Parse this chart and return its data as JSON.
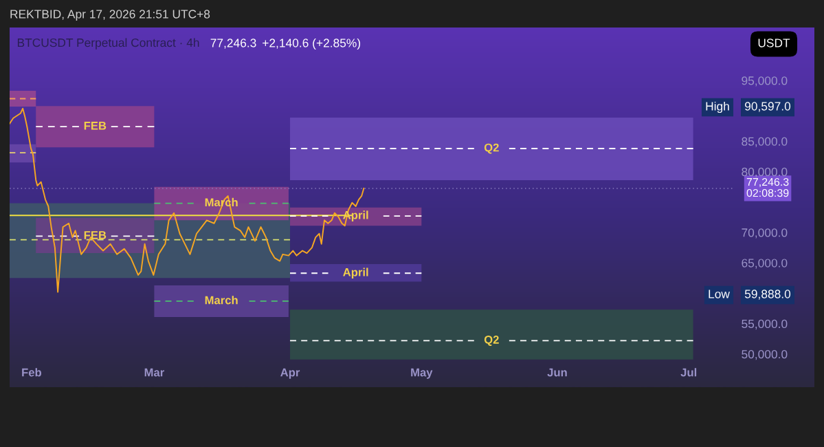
{
  "chart_data": {
    "type": "line",
    "title": "BTCUSDT Perpetual Contract · 4h",
    "annotations": [
      "REKTBID, Apr 17, 2026 21:51 UTC+8",
      "77,246.3",
      "+2,140.6 (+2.85%)",
      "USDT",
      "High",
      "90,597.0",
      "Low",
      "59,888.0"
    ],
    "series": [
      {
        "line_style": "dashed",
        "color": "#d8e070",
        "colors": [
          "#3e5868",
          "#3e5868"
        ],
        "x": [
          "2026-01-27",
          "2026-04-01"
        ],
        "values": [
          68800,
          68800
        ],
        "lower": [
          62500,
          62500
        ],
        "upper": [
          74800,
          74800
        ]
      },
      {
        "line_style": "dashed",
        "color": "#f5a05a",
        "colors": [
          "#9a4690",
          "#9a4690"
        ],
        "x": [
          "2026-01-27",
          "2026-02-02"
        ],
        "values": [
          92000,
          92000
        ],
        "lower": [
          90700,
          90700
        ],
        "upper": [
          93300,
          93300
        ]
      },
      {
        "line_style": "dashed",
        "color": "#ffffff",
        "name": "FEB",
        "colors": [
          "#8e418d",
          "#8e418d"
        ],
        "x": [
          "2026-02-02",
          "2026-03-01"
        ],
        "values": [
          87400,
          87400
        ],
        "lower": [
          84000,
          84000
        ],
        "upper": [
          90800,
          90800
        ]
      },
      {
        "line_style": "dashed",
        "color": "#e8d070",
        "colors": [
          "#6848a8",
          "#6848a8"
        ],
        "x": [
          "2026-01-27",
          "2026-02-02"
        ],
        "values": [
          83100,
          83100
        ],
        "lower": [
          81500,
          81500
        ],
        "upper": [
          84500,
          84500
        ]
      },
      {
        "line_style": "dashed",
        "color": "#ffffff",
        "name": "FEB",
        "colors": [
          "#6a3f86",
          "#6a3f86"
        ],
        "x": [
          "2026-02-02",
          "2026-03-01"
        ],
        "values": [
          69400,
          69400
        ],
        "lower": [
          66600,
          66600
        ],
        "upper": [
          72400,
          72400
        ]
      },
      {
        "line_style": "dashed",
        "color": "#4cc070",
        "name": "March",
        "colors": [
          "#8e428e",
          "#8e428e"
        ],
        "x": [
          "2026-03-01",
          "2026-03-31T16:00"
        ],
        "values": [
          74800,
          74800
        ],
        "lower": [
          72000,
          72000
        ],
        "upper": [
          77500,
          77500
        ]
      },
      {
        "line_style": "dashed",
        "color": "#4cc070",
        "name": "March",
        "colors": [
          "#5e4296",
          "#5e4296"
        ],
        "x": [
          "2026-03-01",
          "2026-03-31T16:00"
        ],
        "values": [
          58700,
          58700
        ],
        "lower": [
          56100,
          56100
        ],
        "upper": [
          61300,
          61300
        ]
      },
      {
        "line_style": "dashed",
        "color": "#ffffff",
        "name": "Q2",
        "colors": [
          "#6a4bb8",
          "#6a4bb8"
        ],
        "x": [
          "2026-04-01",
          "2026-07-02"
        ],
        "values": [
          83800,
          83800
        ],
        "lower": [
          78600,
          78600
        ],
        "upper": [
          88900,
          88900
        ]
      },
      {
        "line_style": "dashed",
        "color": "#ffffff",
        "name": "April",
        "colors": [
          "#853f88",
          "#853f88"
        ],
        "x": [
          "2026-04-01",
          "2026-05-01"
        ],
        "values": [
          72700,
          72700
        ],
        "lower": [
          71100,
          71100
        ],
        "upper": [
          74100,
          74100
        ]
      },
      {
        "line_style": "dashed",
        "color": "#ffffff",
        "name": "April",
        "colors": [
          "#4f3a98",
          "#4f3a98"
        ],
        "x": [
          "2026-04-01",
          "2026-05-01"
        ],
        "values": [
          63300,
          63300
        ],
        "lower": [
          61900,
          61900
        ],
        "upper": [
          64800,
          64800
        ]
      },
      {
        "line_style": "dashed",
        "color": "#ffffff",
        "name": "Q2",
        "colors": [
          "#2f4f48",
          "#2f4f48"
        ],
        "x": [
          "2026-04-01",
          "2026-07-02"
        ],
        "values": [
          52200,
          52200
        ],
        "lower": [
          49100,
          49100
        ],
        "upper": [
          57300,
          57300
        ]
      },
      {
        "line_style": "solid",
        "color": "#f0e040",
        "x": [
          "2026-01-27",
          "2026-04-15"
        ],
        "values": [
          72800,
          72800
        ]
      },
      {
        "line_style": "solid",
        "color": "#f5a623",
        "x": [
          "2026-01-27T00:00",
          "2026-01-27T20:00",
          "2026-01-29T12:00",
          "2026-01-30T00:00",
          "2026-01-30T12:00",
          "2026-01-31T00:00",
          "2026-01-31T20:00",
          "2026-02-01T08:00",
          "2026-02-02T00:00",
          "2026-02-02T08:00",
          "2026-02-03T04:00",
          "2026-02-04T04:00",
          "2026-02-04T20:00",
          "2026-02-05T12:00",
          "2026-02-06T08:00",
          "2026-02-07T00:00",
          "2026-02-07T16:00",
          "2026-02-08T04:00",
          "2026-02-09T12:00",
          "2026-02-10T08:00",
          "2026-02-11T00:00",
          "2026-02-12T08:00",
          "2026-02-13T12:00",
          "2026-02-14T12:00",
          "2026-02-15T20:00",
          "2026-02-17T08:00",
          "2026-02-19T00:00",
          "2026-02-20T12:00",
          "2026-02-22T04:00",
          "2026-02-23T16:00",
          "2026-02-25T08:00",
          "2026-02-26T00:00",
          "2026-02-26T20:00",
          "2026-02-27T16:00",
          "2026-02-28T20:00",
          "2026-03-02T00:00",
          "2026-03-03T12:00",
          "2026-03-04T08:00",
          "2026-03-05T12:00",
          "2026-03-06T20:00",
          "2026-03-08T00:00",
          "2026-03-09T04:00",
          "2026-03-10T16:00",
          "2026-03-11T20:00",
          "2026-03-13T00:00",
          "2026-03-14T16:00",
          "2026-03-15T20:00",
          "2026-03-17T00:00",
          "2026-03-17T20:00",
          "2026-03-18T12:00",
          "2026-03-19T08:00",
          "2026-03-20T16:00",
          "2026-03-21T16:00",
          "2026-03-22T12:00",
          "2026-03-24T00:00",
          "2026-03-25T08:00",
          "2026-03-26T12:00",
          "2026-03-27T12:00",
          "2026-03-28T12:00",
          "2026-03-29T16:00",
          "2026-03-30T08:00",
          "2026-03-31T16:00",
          "2026-04-01T16:00",
          "2026-04-02T12:00",
          "2026-04-03T20:00",
          "2026-04-04T20:00",
          "2026-04-06T00:00",
          "2026-04-06T20:00",
          "2026-04-07T16:00",
          "2026-04-08T04:00",
          "2026-04-08T20:00",
          "2026-04-09T16:00",
          "2026-04-10T12:00",
          "2026-04-11T04:00",
          "2026-04-12T00:00",
          "2026-04-12T20:00",
          "2026-04-13T12:00",
          "2026-04-14T08:00",
          "2026-04-15T04:00",
          "2026-04-16T00:00",
          "2026-04-16T16:00",
          "2026-04-17T08:00",
          "2026-04-17T20:00"
        ],
        "values": [
          87900,
          88800,
          89600,
          90400,
          89000,
          87300,
          83900,
          82800,
          78600,
          77700,
          78300,
          75400,
          74300,
          70900,
          67500,
          60200,
          66400,
          70900,
          71500,
          69200,
          70300,
          66400,
          67500,
          69200,
          68100,
          67000,
          68100,
          66400,
          67300,
          65800,
          63000,
          63600,
          68100,
          65300,
          63000,
          66400,
          68100,
          72000,
          73200,
          69800,
          68100,
          66400,
          69800,
          70900,
          72000,
          71500,
          73200,
          75400,
          76000,
          73700,
          70900,
          70300,
          69200,
          70900,
          68600,
          70900,
          69200,
          67000,
          65800,
          65300,
          66400,
          66200,
          67000,
          66200,
          67000,
          66600,
          67500,
          69200,
          69800,
          68100,
          72000,
          71500,
          72000,
          73200,
          72600,
          71500,
          71100,
          73700,
          74900,
          74300,
          75400,
          76000,
          77246.3
        ]
      }
    ],
    "ref_lines": [
      {
        "axis": "y",
        "value": 77246.3,
        "color": "#8a7fc0",
        "line_style": "dotted",
        "label": "77,246.3\n02:08:39"
      }
    ],
    "xlim": [
      "2026-01-27",
      "2026-07-29T16:00"
    ],
    "xticks": [
      {
        "value": "2026-02-01",
        "label": "Feb"
      },
      {
        "value": "2026-03-01",
        "label": "Mar"
      },
      {
        "value": "2026-04-01",
        "label": "Apr"
      },
      {
        "value": "2026-05-01",
        "label": "May"
      },
      {
        "value": "2026-06-01",
        "label": "Jun"
      },
      {
        "value": "2026-07-01",
        "label": "Jul"
      }
    ],
    "ylim": [
      44550,
      103710
    ],
    "yticks": [
      {
        "value": 50000,
        "label": "50,000.0"
      },
      {
        "value": 55000,
        "label": "55,000.0"
      },
      {
        "value": 65000,
        "label": "65,000.0"
      },
      {
        "value": 70000,
        "label": "70,000.0"
      },
      {
        "value": 80000,
        "label": "80,000.0"
      },
      {
        "value": 85000,
        "label": "85,000.0"
      },
      {
        "value": 95000,
        "label": "95,000.0"
      }
    ],
    "grid": false,
    "legend": false,
    "marker": "none"
  }
}
